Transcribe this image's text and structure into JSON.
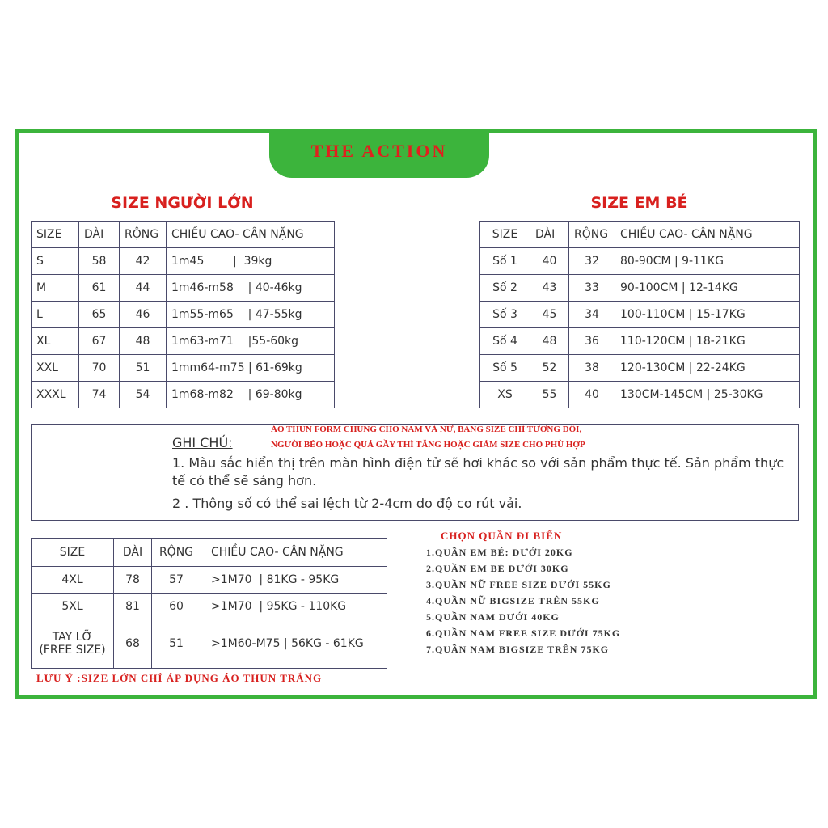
{
  "brand": "THE ACTION",
  "adult": {
    "title": "SIZE NGƯỜI LỚN",
    "header": [
      "SIZE",
      "DÀI",
      "RỘNG",
      "CHIỀU CAO- CÂN NẶNG"
    ],
    "rows": [
      [
        "S",
        "58",
        "42",
        "1m45        |  39kg"
      ],
      [
        "M",
        "61",
        "44",
        "1m46-m58    | 40-46kg"
      ],
      [
        "L",
        "65",
        "46",
        "1m55-m65    | 47-55kg"
      ],
      [
        "XL",
        "67",
        "48",
        "1m63-m71    |55-60kg"
      ],
      [
        "XXL",
        "70",
        "51",
        "1mm64-m75 | 61-69kg"
      ],
      [
        "XXXL",
        "74",
        "54",
        "1m68-m82    | 69-80kg"
      ]
    ]
  },
  "kid": {
    "title": "SIZE EM BÉ",
    "header": [
      "SIZE",
      "DÀI",
      "RỘNG",
      "CHIỀU CAO- CÂN NẶNG"
    ],
    "rows": [
      [
        "Số 1",
        "40",
        "32",
        "80-90CM | 9-11KG"
      ],
      [
        "Số 2",
        "43",
        "33",
        "90-100CM | 12-14KG"
      ],
      [
        "Số 3",
        "45",
        "34",
        "100-110CM | 15-17KG"
      ],
      [
        "Số 4",
        "48",
        "36",
        "110-120CM | 18-21KG"
      ],
      [
        "Số 5",
        "52",
        "38",
        "120-130CM | 22-24KG"
      ],
      [
        "XS",
        "55",
        "40",
        "130CM-145CM | 25-30KG"
      ]
    ]
  },
  "note": {
    "label": "GHI CHÚ:",
    "red_lines": [
      "ÁO THUN FORM CHUNG CHO NAM VÀ NỮ, BẢNG SIZE CHỈ TƯƠNG ĐỐI,",
      "NGƯỜI BÉO HOẶC QUÁ GẦY THÌ TĂNG HOẶC GIẢM SIZE CHO PHÙ HỢP"
    ],
    "items": [
      "1. Màu sắc hiển thị trên màn hình điện tử sẽ hơi khác so với sản phẩm thực tế. Sản phẩm thực tế có thể sẽ sáng hơn.",
      "2 . Thông số có thể sai lệch từ 2-4cm do độ co rút vải."
    ]
  },
  "big": {
    "header": [
      "SIZE",
      "DÀI",
      "RỘNG",
      "CHIỀU CAO- CÂN NẶNG"
    ],
    "rows": [
      [
        "4XL",
        "78",
        "57",
        ">1M70  | 81KG - 95KG"
      ],
      [
        "5XL",
        "81",
        "60",
        ">1M70  | 95KG - 110KG"
      ],
      [
        "TAY LỠ\n(FREE SIZE)",
        "68",
        "51",
        ">1M60-M75 | 56KG - 61KG"
      ]
    ],
    "footnote": "LƯU Ý :SIZE LỚN CHỈ ÁP DỤNG ÁO THUN TRẮNG"
  },
  "pants": {
    "title": "CHỌN QUẦN ĐI BIỂN",
    "items": [
      "1.QUẦN EM BÉ: DƯỚI 20KG",
      "2.QUẦN EM BÉ DƯỚI 30KG",
      "3.QUẦN NỮ FREE SIZE DƯỚI 55KG",
      "4.QUẦN NỮ BIGSIZE TRÊN 55KG",
      "5.QUẦN NAM DƯỚI 40KG",
      "6.QUẦN NAM FREE SIZE DƯỚI 75KG",
      "7.QUẦN NAM BIGSIZE TRÊN 75KG"
    ]
  }
}
